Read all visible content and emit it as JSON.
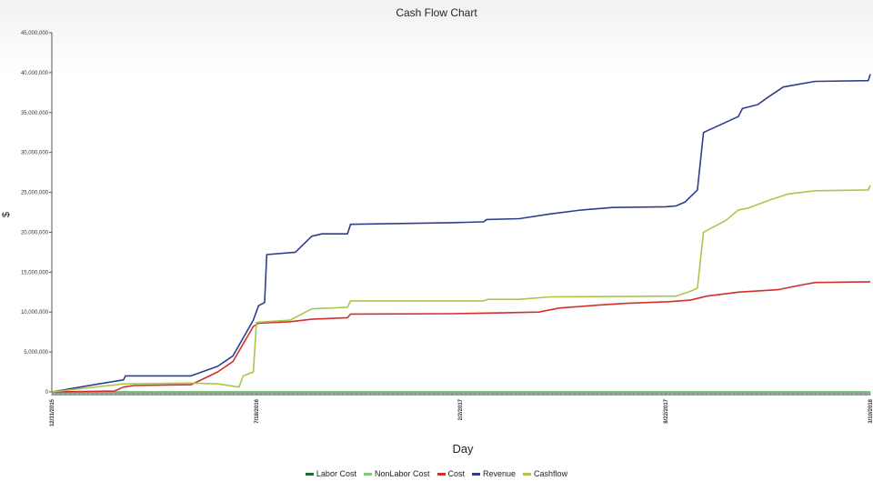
{
  "chart_data": {
    "type": "line",
    "title": "Cash Flow Chart",
    "xlabel": "Day",
    "ylabel": "$",
    "ylim": [
      0,
      45000000
    ],
    "yticks": [
      {
        "value": 0,
        "label": "0"
      },
      {
        "value": 5000000,
        "label": "5,000,000"
      },
      {
        "value": 10000000,
        "label": "10,000,000"
      },
      {
        "value": 15000000,
        "label": "15,000,000"
      },
      {
        "value": 20000000,
        "label": "20,000,000"
      },
      {
        "value": 25000000,
        "label": "25,000,000"
      },
      {
        "value": 30000000,
        "label": "30,000,000"
      },
      {
        "value": 35000000,
        "label": "35,000,000"
      },
      {
        "value": 40000000,
        "label": "40,000,000"
      },
      {
        "value": 45000000,
        "label": "45,000,000"
      }
    ],
    "xlim": [
      "2015-12-31",
      "2018-03-10"
    ],
    "xticks": [
      {
        "value": "2015-12-31",
        "label": "12/31/2015"
      },
      {
        "value": "2016-07-18",
        "label": "7/18/2016"
      },
      {
        "value": "2017-02-02",
        "label": "2/2/2017"
      },
      {
        "value": "2017-08-22",
        "label": "8/22/2017"
      },
      {
        "value": "2018-03-10",
        "label": "3/10/2018"
      }
    ],
    "grid": false,
    "legend_position": "bottom",
    "series": [
      {
        "name": "Labor Cost",
        "color": "#1d6b2e",
        "points": [
          [
            "2015-12-31",
            0
          ],
          [
            "2018-03-10",
            0
          ]
        ]
      },
      {
        "name": "NonLabor Cost",
        "color": "#7fc97f",
        "points": [
          [
            "2015-12-31",
            0
          ],
          [
            "2018-03-10",
            0
          ]
        ]
      },
      {
        "name": "Cost",
        "color": "#d2302b",
        "points": [
          [
            "2015-12-31",
            0
          ],
          [
            "2016-03-01",
            100000
          ],
          [
            "2016-03-10",
            600000
          ],
          [
            "2016-03-20",
            800000
          ],
          [
            "2016-05-15",
            900000
          ],
          [
            "2016-06-10",
            2500000
          ],
          [
            "2016-06-25",
            3800000
          ],
          [
            "2016-07-15",
            8200000
          ],
          [
            "2016-07-20",
            8600000
          ],
          [
            "2016-08-20",
            8800000
          ],
          [
            "2016-09-10",
            9100000
          ],
          [
            "2016-10-15",
            9300000
          ],
          [
            "2016-10-18",
            9750000
          ],
          [
            "2017-01-25",
            9800000
          ],
          [
            "2017-03-15",
            9900000
          ],
          [
            "2017-04-20",
            10000000
          ],
          [
            "2017-05-10",
            10500000
          ],
          [
            "2017-06-20",
            10900000
          ],
          [
            "2017-07-15",
            11100000
          ],
          [
            "2017-08-25",
            11300000
          ],
          [
            "2017-09-15",
            11500000
          ],
          [
            "2017-10-01",
            12000000
          ],
          [
            "2017-11-01",
            12500000
          ],
          [
            "2017-12-10",
            12800000
          ],
          [
            "2017-12-25",
            13200000
          ],
          [
            "2018-01-15",
            13700000
          ],
          [
            "2018-03-10",
            13800000
          ]
        ]
      },
      {
        "name": "Revenue",
        "color": "#2e3d8c",
        "points": [
          [
            "2015-12-31",
            0
          ],
          [
            "2016-02-15",
            1000000
          ],
          [
            "2016-03-10",
            1500000
          ],
          [
            "2016-03-12",
            2000000
          ],
          [
            "2016-05-15",
            2000000
          ],
          [
            "2016-06-10",
            3200000
          ],
          [
            "2016-06-25",
            4500000
          ],
          [
            "2016-07-15",
            9000000
          ],
          [
            "2016-07-20",
            10800000
          ],
          [
            "2016-07-26",
            11200000
          ],
          [
            "2016-07-28",
            17200000
          ],
          [
            "2016-08-25",
            17500000
          ],
          [
            "2016-09-10",
            19500000
          ],
          [
            "2016-09-20",
            19800000
          ],
          [
            "2016-10-15",
            19800000
          ],
          [
            "2016-10-18",
            21000000
          ],
          [
            "2017-01-25",
            21200000
          ],
          [
            "2017-02-25",
            21300000
          ],
          [
            "2017-02-28",
            21600000
          ],
          [
            "2017-04-01",
            21700000
          ],
          [
            "2017-05-01",
            22300000
          ],
          [
            "2017-06-01",
            22800000
          ],
          [
            "2017-07-01",
            23100000
          ],
          [
            "2017-08-22",
            23200000
          ],
          [
            "2017-09-01",
            23300000
          ],
          [
            "2017-09-10",
            23800000
          ],
          [
            "2017-09-18",
            24800000
          ],
          [
            "2017-09-22",
            25300000
          ],
          [
            "2017-09-28",
            32500000
          ],
          [
            "2017-11-01",
            34500000
          ],
          [
            "2017-11-05",
            35500000
          ],
          [
            "2017-11-20",
            36000000
          ],
          [
            "2017-12-01",
            37000000
          ],
          [
            "2017-12-15",
            38200000
          ],
          [
            "2018-01-15",
            38900000
          ],
          [
            "2018-03-08",
            39000000
          ],
          [
            "2018-03-10",
            39800000
          ]
        ]
      },
      {
        "name": "Cashflow",
        "color": "#a6c94a",
        "points": [
          [
            "2015-12-31",
            0
          ],
          [
            "2016-03-10",
            1000000
          ],
          [
            "2016-05-15",
            1100000
          ],
          [
            "2016-06-10",
            1000000
          ],
          [
            "2016-07-01",
            600000
          ],
          [
            "2016-07-05",
            2000000
          ],
          [
            "2016-07-15",
            2500000
          ],
          [
            "2016-07-18",
            8700000
          ],
          [
            "2016-08-20",
            9000000
          ],
          [
            "2016-09-10",
            10400000
          ],
          [
            "2016-10-15",
            10600000
          ],
          [
            "2016-10-18",
            11400000
          ],
          [
            "2017-02-25",
            11400000
          ],
          [
            "2017-03-01",
            11600000
          ],
          [
            "2017-04-01",
            11600000
          ],
          [
            "2017-05-01",
            11900000
          ],
          [
            "2017-09-01",
            12000000
          ],
          [
            "2017-09-15",
            12600000
          ],
          [
            "2017-09-22",
            13000000
          ],
          [
            "2017-09-28",
            20000000
          ],
          [
            "2017-10-20",
            21500000
          ],
          [
            "2017-11-01",
            22800000
          ],
          [
            "2017-11-10",
            23000000
          ],
          [
            "2017-12-01",
            24000000
          ],
          [
            "2017-12-20",
            24800000
          ],
          [
            "2018-01-15",
            25200000
          ],
          [
            "2018-03-08",
            25300000
          ],
          [
            "2018-03-10",
            25900000
          ]
        ]
      }
    ]
  }
}
